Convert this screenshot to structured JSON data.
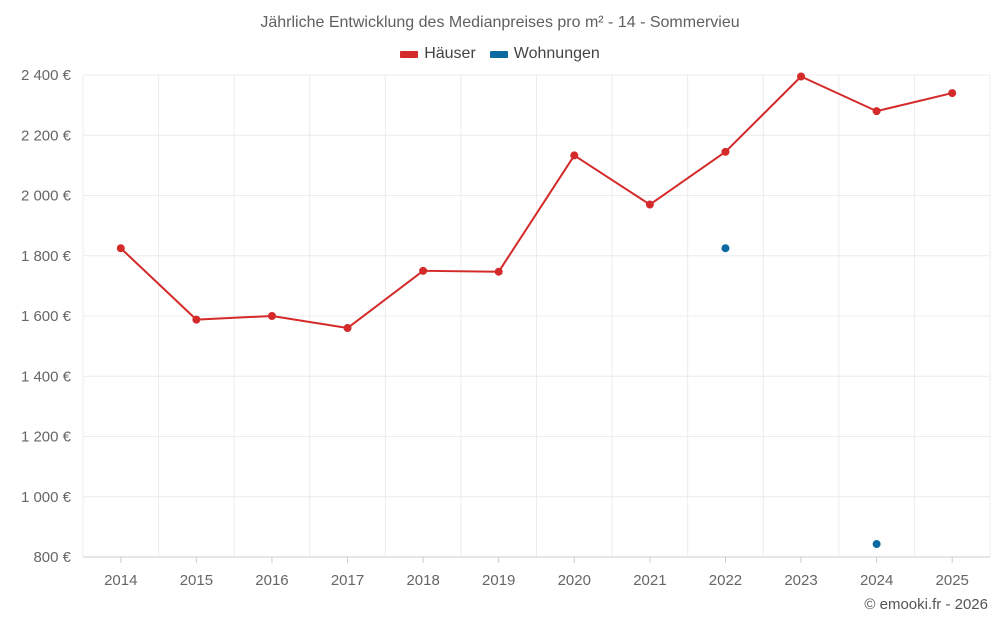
{
  "chart_data": {
    "type": "line",
    "title": "Jährliche Entwicklung des Medianpreises pro m² - 14 - Sommervieu",
    "categories": [
      "2014",
      "2015",
      "2016",
      "2017",
      "2018",
      "2019",
      "2020",
      "2021",
      "2022",
      "2023",
      "2024",
      "2025"
    ],
    "series": [
      {
        "name": "Häuser",
        "color": "#d42a2a",
        "values": [
          1825,
          1588,
          1600,
          1560,
          1750,
          1747,
          2133,
          1970,
          2145,
          2395,
          2280,
          2340
        ]
      },
      {
        "name": "Wohnungen",
        "color": "#0a6aa1",
        "values": [
          null,
          null,
          null,
          null,
          null,
          null,
          null,
          null,
          1825,
          null,
          843,
          null
        ]
      }
    ],
    "yticks": [
      800,
      1000,
      1200,
      1400,
      1600,
      1800,
      2000,
      2200,
      2400
    ],
    "ytick_labels": [
      "800 €",
      "1 000 €",
      "1 200 €",
      "1 400 €",
      "1 600 €",
      "1 800 €",
      "2 000 €",
      "2 200 €",
      "2 400 €"
    ],
    "ylim": [
      800,
      2400
    ],
    "xlabel": "",
    "ylabel": "",
    "legend_position": "top-center",
    "grid": true
  },
  "credit": "© emooki.fr - 2026"
}
